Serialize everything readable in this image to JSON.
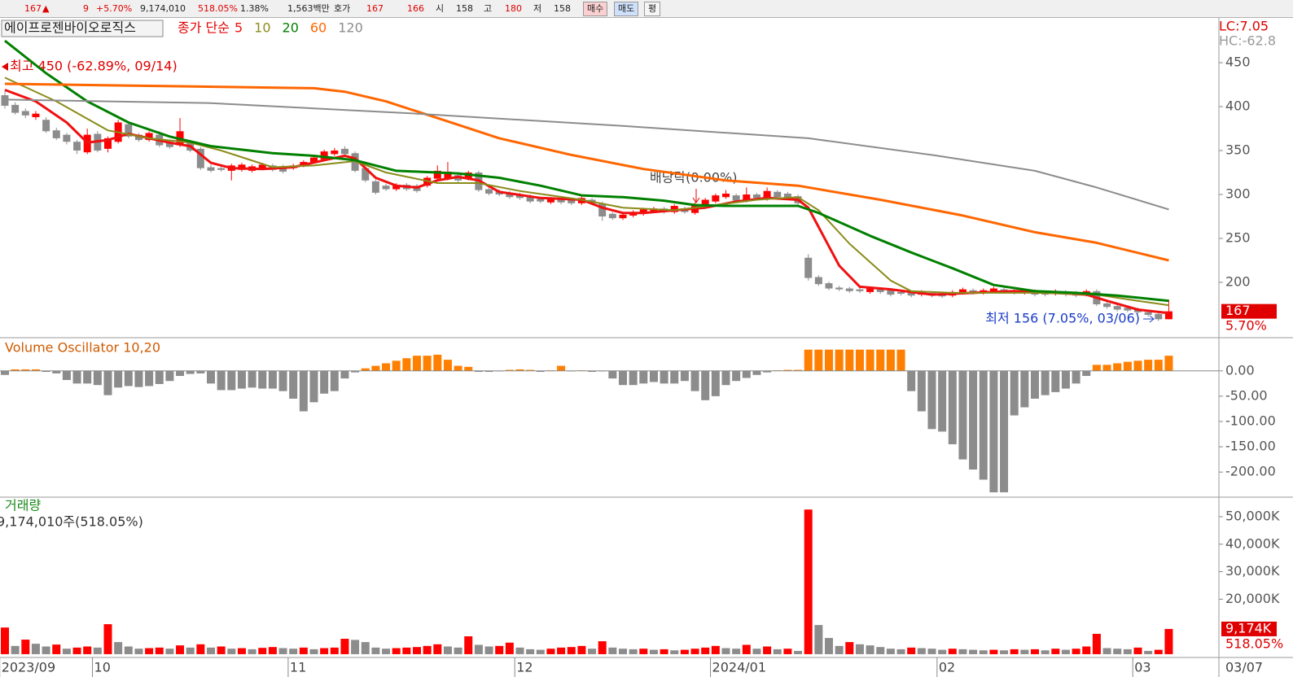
{
  "header": {
    "items": [
      167,
      "▲",
      9,
      "+5.70%",
      "9,174,010",
      "518.05%",
      "1.38%",
      "1,563백만",
      "호가",
      167,
      166,
      "시",
      158,
      "고",
      180,
      "저",
      158,
      "매수",
      "매도",
      "평"
    ]
  },
  "chart_data": [
    {
      "type": "candlestick",
      "title": "에이프로젠바이오로직스",
      "legend_prefix": "종가 단순",
      "open": [
        413,
        402,
        395,
        388,
        385,
        373,
        368,
        360,
        348,
        369,
        352,
        360,
        380,
        368,
        362,
        368,
        360,
        356,
        360,
        352,
        331,
        330,
        327,
        328,
        327,
        330,
        333,
        332,
        330,
        333,
        337,
        340,
        346,
        352,
        347,
        330,
        315,
        310,
        306,
        311,
        310,
        310,
        318,
        318,
        322,
        318,
        325,
        306,
        304,
        302,
        300,
        298,
        295,
        291,
        294,
        294,
        290,
        294,
        290,
        278,
        273,
        276,
        278,
        281,
        284,
        280,
        284,
        279,
        287,
        292,
        297,
        299,
        293,
        300,
        295,
        303,
        301,
        298,
        228,
        206,
        199,
        194,
        193,
        192,
        189,
        192,
        191,
        189,
        188,
        186,
        188,
        187,
        185,
        188,
        191,
        188,
        190,
        192,
        190,
        188,
        190,
        188,
        187,
        189,
        188,
        186,
        190,
        176,
        173,
        171,
        169,
        166,
        164,
        158
      ],
      "high": [
        418,
        405,
        398,
        395,
        388,
        376,
        370,
        362,
        375,
        372,
        366,
        385,
        382,
        370,
        372,
        372,
        362,
        387,
        362,
        354,
        334,
        332,
        335,
        336,
        334,
        336,
        335,
        334,
        335,
        339,
        344,
        351,
        353,
        355,
        349,
        332,
        317,
        312,
        313,
        313,
        312,
        321,
        333,
        337,
        324,
        327,
        327,
        308,
        306,
        304,
        302,
        300,
        297,
        297,
        296,
        296,
        298,
        296,
        292,
        280,
        279,
        282,
        285,
        286,
        286,
        289,
        286,
        291,
        296,
        301,
        305,
        301,
        308,
        302,
        308,
        305,
        303,
        300,
        232,
        208,
        201,
        196,
        195,
        194,
        195,
        194,
        193,
        191,
        190,
        191,
        190,
        189,
        191,
        194,
        193,
        193,
        195,
        194,
        192,
        193,
        192,
        190,
        192,
        191,
        190,
        192,
        192,
        178,
        175,
        173,
        171,
        168,
        166,
        180
      ],
      "low": [
        398,
        391,
        387,
        385,
        370,
        362,
        357,
        346,
        346,
        348,
        348,
        358,
        364,
        360,
        360,
        354,
        352,
        354,
        348,
        328,
        325,
        326,
        316,
        326,
        325,
        328,
        326,
        324,
        328,
        331,
        335,
        338,
        344,
        344,
        325,
        314,
        300,
        304,
        304,
        304,
        302,
        308,
        316,
        316,
        314,
        316,
        303,
        299,
        298,
        295,
        294,
        290,
        290,
        289,
        289,
        288,
        288,
        288,
        270,
        271,
        271,
        274,
        276,
        279,
        278,
        278,
        278,
        277,
        285,
        290,
        295,
        291,
        291,
        294,
        293,
        295,
        294,
        288,
        202,
        196,
        191,
        190,
        188,
        188,
        187,
        187,
        184,
        185,
        183,
        184,
        183,
        182,
        183,
        186,
        186,
        186,
        188,
        187,
        186,
        186,
        184,
        184,
        185,
        184,
        183,
        184,
        173,
        170,
        167,
        166,
        164,
        161,
        156,
        158
      ],
      "close": [
        401,
        393,
        390,
        392,
        372,
        364,
        360,
        350,
        368,
        350,
        364,
        382,
        366,
        362,
        370,
        356,
        354,
        372,
        350,
        330,
        327,
        328,
        333,
        334,
        332,
        334,
        328,
        326,
        333,
        337,
        342,
        349,
        350,
        346,
        327,
        316,
        302,
        306,
        311,
        306,
        304,
        319,
        327,
        326,
        316,
        325,
        305,
        301,
        300,
        297,
        296,
        292,
        292,
        295,
        291,
        290,
        296,
        290,
        275,
        273,
        277,
        280,
        283,
        284,
        280,
        287,
        280,
        289,
        294,
        299,
        301,
        293,
        300,
        296,
        304,
        297,
        296,
        290,
        205,
        198,
        193,
        192,
        190,
        190,
        193,
        189,
        186,
        187,
        185,
        189,
        185,
        184,
        189,
        192,
        188,
        191,
        193,
        189,
        188,
        191,
        186,
        186,
        190,
        186,
        185,
        190,
        175,
        172,
        169,
        168,
        166,
        163,
        158,
        167
      ],
      "up_color": "#ff0000",
      "down_color": "#8c8c8c",
      "series": [
        {
          "name": "5",
          "color": "#f01010",
          "x": [
            0,
            3,
            6,
            8,
            10,
            12,
            14,
            16,
            18,
            20,
            22,
            25,
            28,
            31,
            33,
            34,
            36,
            38,
            40,
            42,
            44,
            46,
            48,
            52,
            56,
            58,
            60,
            62,
            65,
            68,
            71,
            74,
            77,
            78,
            79,
            81,
            83,
            86,
            90,
            94,
            98,
            102,
            105,
            107,
            110,
            113
          ],
          "values": [
            419,
            406,
            382,
            359,
            362,
            369,
            364,
            359,
            355,
            336,
            330,
            329,
            331,
            339,
            344,
            341,
            319,
            310,
            308,
            316,
            320,
            316,
            303,
            296,
            294,
            285,
            279,
            279,
            282,
            285,
            292,
            296,
            294,
            285,
            263,
            219,
            195,
            192,
            186,
            188,
            190,
            188,
            186,
            179,
            169,
            165
          ]
        },
        {
          "name": "10",
          "color": "#8b8b1a",
          "x": [
            0,
            5,
            10,
            14,
            18,
            21,
            26,
            30,
            34,
            37,
            42,
            46,
            50,
            56,
            60,
            65,
            69,
            73,
            77,
            79,
            82,
            86,
            88,
            92,
            100,
            106,
            110,
            113
          ],
          "values": [
            433,
            406,
            373,
            364,
            359,
            350,
            331,
            333,
            338,
            325,
            313,
            313,
            304,
            294,
            285,
            282,
            288,
            294,
            297,
            282,
            244,
            202,
            190,
            188,
            188,
            186,
            179,
            174
          ]
        },
        {
          "name": "20",
          "color": "#008000",
          "x": [
            0,
            4,
            8,
            12,
            16,
            20,
            26,
            30,
            34,
            38,
            44,
            48,
            52,
            56,
            60,
            64,
            67,
            70,
            74,
            77,
            79,
            84,
            88,
            92,
            96,
            100,
            104,
            108,
            113
          ],
          "values": [
            475,
            438,
            406,
            382,
            366,
            355,
            347,
            344,
            339,
            327,
            324,
            319,
            310,
            299,
            297,
            293,
            288,
            287,
            287,
            287,
            279,
            253,
            234,
            216,
            197,
            190,
            188,
            185,
            179
          ]
        },
        {
          "name": "60",
          "color": "#ff6600",
          "x": [
            0,
            30,
            33,
            37,
            42,
            48,
            55,
            62,
            70,
            77,
            85,
            93,
            100,
            106,
            113
          ],
          "values": [
            426,
            421,
            417,
            406,
            387,
            364,
            345,
            329,
            316,
            310,
            294,
            276,
            257,
            245,
            225
          ]
        },
        {
          "name": "120",
          "color": "#8c8c8c",
          "x": [
            0,
            20,
            40,
            60,
            78,
            90,
            100,
            106,
            113
          ],
          "values": [
            408,
            404,
            392,
            378,
            364,
            345,
            327,
            308,
            283
          ]
        }
      ],
      "ylim": [
        137,
        501
      ],
      "yticks": [
        200,
        250,
        300,
        350,
        400,
        450
      ],
      "annotations": [
        "최고 450 (-62.89%, 09/14)",
        "최저 156 (7.05%, 03/06)",
        "배당락(0.00%)"
      ],
      "right_labels": [
        "LC:7.05",
        "HC:-62.8"
      ],
      "last_value": 167,
      "last_change": "5.70%"
    },
    {
      "type": "bar",
      "title": "Volume Oscillator 10,20",
      "values": [
        -8,
        3,
        3,
        3,
        -2,
        -5,
        -18,
        -25,
        -25,
        -28,
        -48,
        -33,
        -30,
        -32,
        -30,
        -26,
        -20,
        -10,
        -6,
        -5,
        -25,
        -38,
        -38,
        -35,
        -33,
        -35,
        -35,
        -40,
        -55,
        -80,
        -62,
        -45,
        -40,
        -15,
        -3,
        5,
        10,
        15,
        20,
        25,
        30,
        30,
        32,
        22,
        10,
        8,
        -2,
        -2,
        -1,
        2,
        3,
        2,
        -2,
        1,
        10,
        -1,
        1,
        -2,
        -1,
        -15,
        -28,
        -28,
        -25,
        -22,
        -25,
        -25,
        -20,
        -40,
        -58,
        -50,
        -28,
        -20,
        -14,
        -8,
        -3,
        1,
        2,
        2,
        42,
        42,
        42,
        42,
        42,
        42,
        42,
        42,
        42,
        42,
        -40,
        -80,
        -115,
        -120,
        -145,
        -175,
        -195,
        -215,
        -240,
        -240,
        -88,
        -72,
        -55,
        -48,
        -42,
        -35,
        -25,
        -10,
        12,
        12,
        15,
        18,
        20,
        22,
        22,
        30
      ],
      "pos_color": "#ff7f00",
      "neg_color": "#8c8c8c",
      "ylim": [
        -248,
        64
      ],
      "yticks": [
        {
          "value": -200,
          "label": "-200.00"
        },
        {
          "value": -150,
          "label": "-150.00"
        },
        {
          "value": -100,
          "label": "-100.00"
        },
        {
          "value": -50,
          "label": "-50.00"
        },
        {
          "value": 0,
          "label": "0.00"
        }
      ]
    },
    {
      "type": "bar",
      "title": "거래량",
      "subtitle": "9,174,010주(518.05%)",
      "values": [
        9700,
        3000,
        5300,
        3800,
        2800,
        3500,
        2000,
        2400,
        2800,
        2400,
        10900,
        4400,
        2800,
        2000,
        2200,
        2400,
        2000,
        3200,
        2400,
        3600,
        2400,
        2800,
        2000,
        2200,
        1800,
        2300,
        2600,
        2200,
        2000,
        2400,
        1800,
        2200,
        2400,
        5600,
        5200,
        4400,
        2400,
        2000,
        2200,
        2400,
        2600,
        3000,
        3600,
        2800,
        2400,
        6500,
        3400,
        2800,
        3000,
        4200,
        2400,
        1800,
        1600,
        2000,
        2400,
        2600,
        3000,
        2000,
        4700,
        2400,
        2000,
        1800,
        2000,
        1600,
        1800,
        1400,
        1600,
        2000,
        2400,
        3000,
        2200,
        2000,
        3400,
        2000,
        2800,
        1800,
        2000,
        1200,
        52600,
        10600,
        5900,
        3000,
        4400,
        3600,
        3200,
        2600,
        2000,
        1800,
        2400,
        2200,
        2000,
        1600,
        2000,
        1800,
        1600,
        1400,
        1600,
        1400,
        1800,
        1600,
        1800,
        1400,
        2000,
        1600,
        2000,
        2800,
        7400,
        2200,
        2000,
        1800,
        2400,
        1200,
        1600,
        9174
      ],
      "up_color": "#ff0000",
      "down_color": "#8c8c8c",
      "ylim": [
        -900,
        56800
      ],
      "yticks": [
        {
          "value": 20000,
          "label": "20,000K"
        },
        {
          "value": 30000,
          "label": "30,000K"
        },
        {
          "value": 40000,
          "label": "40,000K"
        },
        {
          "value": 50000,
          "label": "50,000K"
        }
      ],
      "last_label": "9,174K",
      "last_change": "518.05%",
      "xticks": [
        {
          "value": 0,
          "label": "2023/09"
        },
        {
          "value": 9,
          "label": "10"
        },
        {
          "value": 28,
          "label": "11"
        },
        {
          "value": 50,
          "label": "12"
        },
        {
          "value": 69,
          "label": "2024/01"
        },
        {
          "value": 91,
          "label": "02"
        },
        {
          "value": 110,
          "label": "03"
        }
      ],
      "last_date": "03/07"
    }
  ]
}
